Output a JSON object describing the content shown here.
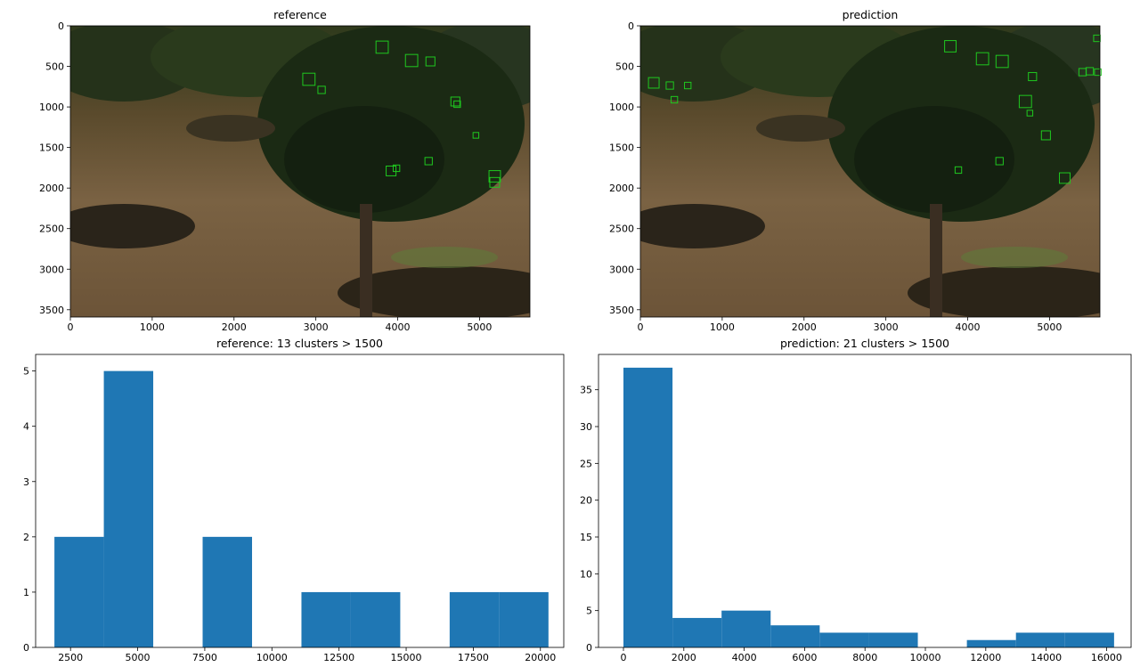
{
  "chart_data": [
    {
      "type": "image",
      "title": "reference",
      "xlim": [
        0,
        5616
      ],
      "ylim": [
        3590,
        0
      ],
      "xticks": [
        0,
        1000,
        2000,
        3000,
        4000,
        5000
      ],
      "yticks": [
        0,
        500,
        1000,
        1500,
        2000,
        2500,
        3000,
        3500
      ],
      "box_color": "#1fc81f",
      "boxes": [
        {
          "x": 3810,
          "y": 263,
          "size": 150
        },
        {
          "x": 4170,
          "y": 428,
          "size": 150
        },
        {
          "x": 4400,
          "y": 439,
          "size": 110
        },
        {
          "x": 2915,
          "y": 659,
          "size": 150
        },
        {
          "x": 3070,
          "y": 790,
          "size": 90
        },
        {
          "x": 4705,
          "y": 933,
          "size": 110
        },
        {
          "x": 4727,
          "y": 966,
          "size": 80
        },
        {
          "x": 4956,
          "y": 1350,
          "size": 70
        },
        {
          "x": 4378,
          "y": 1668,
          "size": 90
        },
        {
          "x": 3919,
          "y": 1789,
          "size": 120
        },
        {
          "x": 3985,
          "y": 1756,
          "size": 80
        },
        {
          "x": 5186,
          "y": 1855,
          "size": 140
        },
        {
          "x": 5186,
          "y": 1930,
          "size": 120
        }
      ]
    },
    {
      "type": "image",
      "title": "prediction",
      "xlim": [
        0,
        5616
      ],
      "ylim": [
        3590,
        0
      ],
      "xticks": [
        0,
        1000,
        2000,
        3000,
        4000,
        5000
      ],
      "yticks": [
        0,
        500,
        1000,
        1500,
        2000,
        2500,
        3000,
        3500
      ],
      "box_color": "#1fc81f",
      "boxes": [
        {
          "x": 3788,
          "y": 252,
          "size": 140
        },
        {
          "x": 4181,
          "y": 406,
          "size": 150
        },
        {
          "x": 4421,
          "y": 439,
          "size": 150
        },
        {
          "x": 5579,
          "y": 154,
          "size": 80
        },
        {
          "x": 5404,
          "y": 571,
          "size": 90
        },
        {
          "x": 5491,
          "y": 560,
          "size": 90
        },
        {
          "x": 5590,
          "y": 571,
          "size": 80
        },
        {
          "x": 4792,
          "y": 626,
          "size": 100
        },
        {
          "x": 4705,
          "y": 933,
          "size": 150
        },
        {
          "x": 4760,
          "y": 1076,
          "size": 70
        },
        {
          "x": 4956,
          "y": 1350,
          "size": 110
        },
        {
          "x": 4389,
          "y": 1668,
          "size": 90
        },
        {
          "x": 3886,
          "y": 1778,
          "size": 80
        },
        {
          "x": 5186,
          "y": 1877,
          "size": 130
        },
        {
          "x": 164,
          "y": 703,
          "size": 130
        },
        {
          "x": 360,
          "y": 736,
          "size": 90
        },
        {
          "x": 415,
          "y": 911,
          "size": 80
        },
        {
          "x": 579,
          "y": 736,
          "size": 80
        }
      ]
    },
    {
      "type": "histogram",
      "title": "reference: 13 clusters > 1500",
      "color": "#1f77b4",
      "bins": [
        1900,
        3740,
        5580,
        7420,
        9260,
        11100,
        12940,
        14780,
        16620,
        18460,
        20300
      ],
      "values": [
        2,
        5,
        0,
        2,
        0,
        1,
        1,
        0,
        1,
        1
      ],
      "xlim": [
        1200,
        20870
      ],
      "ylim": [
        0,
        5.3
      ],
      "xticks": [
        2500,
        5000,
        7500,
        10000,
        12500,
        15000,
        17500,
        20000
      ],
      "yticks": [
        0,
        1,
        2,
        3,
        4,
        5
      ]
    },
    {
      "type": "histogram",
      "title": "prediction: 21 clusters > 1500",
      "color": "#1f77b4",
      "bins": [
        0,
        1625,
        3250,
        4875,
        6500,
        8125,
        9750,
        11375,
        13000,
        14625,
        16250
      ],
      "values": [
        38,
        4,
        5,
        3,
        2,
        2,
        0,
        1,
        2,
        2
      ],
      "xlim": [
        -826,
        16814
      ],
      "ylim": [
        0,
        39.8
      ],
      "xticks": [
        0,
        2000,
        4000,
        6000,
        8000,
        10000,
        12000,
        14000,
        16000
      ],
      "yticks": [
        0,
        5,
        10,
        15,
        20,
        25,
        30,
        35
      ]
    }
  ]
}
